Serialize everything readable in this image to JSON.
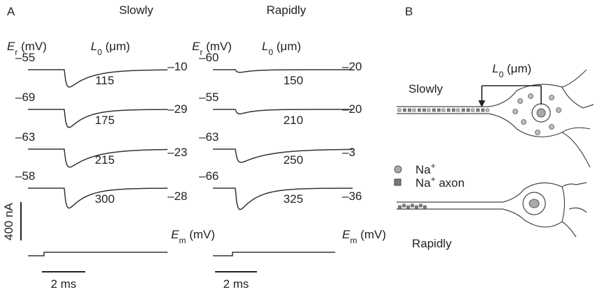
{
  "panel_a": {
    "label": "A",
    "er_header": [
      "E",
      "r",
      " (mV)"
    ],
    "l0_header": [
      "L",
      "0",
      " (μm)"
    ],
    "em_header": [
      "E",
      "m",
      " (mV)"
    ],
    "current_scale": "400 nA",
    "columns": [
      {
        "title": "Slowly",
        "time_scale": "2 ms",
        "rows": [
          {
            "er": "–55",
            "l0": "115",
            "em": "–10"
          },
          {
            "er": "–69",
            "l0": "175",
            "em": "–29"
          },
          {
            "er": "–63",
            "l0": "215",
            "em": "–23"
          },
          {
            "er": "–58",
            "l0": "300",
            "em": "–28"
          }
        ]
      },
      {
        "title": "Rapidly",
        "time_scale": "2 ms",
        "rows": [
          {
            "er": "–60",
            "l0": "150",
            "em": "–20"
          },
          {
            "er": "–55",
            "l0": "210",
            "em": "–20"
          },
          {
            "er": "–63",
            "l0": "250",
            "em": "–3"
          },
          {
            "er": "–66",
            "l0": "325",
            "em": "–36"
          }
        ]
      }
    ]
  },
  "panel_b": {
    "label": "B",
    "l0_header": [
      "L",
      "0",
      " (μm)"
    ],
    "top_label": "Slowly",
    "bottom_label": "Rapidly",
    "legend": [
      [
        "Na",
        "+"
      ],
      [
        "Na",
        "+",
        " axon"
      ]
    ]
  }
}
